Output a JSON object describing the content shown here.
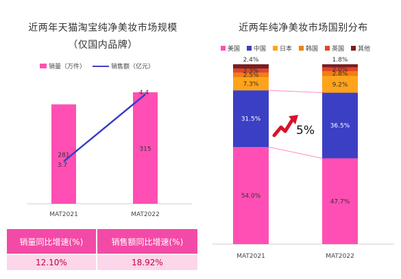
{
  "left": {
    "title_line1": "近两年天猫淘宝纯净美妆市场规模",
    "title_line2": "（仅国内品牌）",
    "legend": {
      "bar": "销量（万件）",
      "line": "销售额（亿元）"
    },
    "table": {
      "headers": [
        "销量同比增速(%)",
        "销售额同比增速(%)"
      ],
      "values": [
        "12.10%",
        "18.92%"
      ]
    }
  },
  "right": {
    "title": "近两年纯净美妆市场国别分布",
    "annotation": "5%"
  },
  "colors": {
    "bar": "#ff4fb4",
    "line": "#3b3fc4"
  },
  "chart_data": [
    {
      "type": "bar",
      "title": "近两年天猫淘宝纯净美妆市场规模（仅国内品牌）",
      "categories": [
        "MAT2021",
        "MAT2022"
      ],
      "series": [
        {
          "name": "销量（万件）",
          "type": "bar",
          "values": [
            281,
            315
          ],
          "labels": [
            "281",
            "315"
          ]
        },
        {
          "name": "销售额（亿元）",
          "type": "line",
          "values": [
            3.7,
            4.4
          ],
          "labels": [
            "3.7",
            "4.4"
          ]
        }
      ]
    },
    {
      "type": "bar",
      "stacked": true,
      "title": "近两年纯净美妆市场国别分布",
      "categories": [
        "MAT2021",
        "MAT2022"
      ],
      "series": [
        {
          "name": "美国",
          "color": "#ff4fb4",
          "values": [
            54.0,
            47.7
          ],
          "labels": [
            "54.0%",
            "47.7%"
          ]
        },
        {
          "name": "中国",
          "color": "#3b3fc4",
          "values": [
            31.5,
            36.5
          ],
          "labels": [
            "31.5%",
            "36.5%"
          ]
        },
        {
          "name": "日本",
          "color": "#ffa31a",
          "values": [
            7.3,
            9.2
          ],
          "labels": [
            "7.3%",
            "9.2%"
          ]
        },
        {
          "name": "韩国",
          "color": "#f07f12",
          "values": [
            2.5,
            2.8
          ],
          "labels": [
            "2.5%",
            "2.8%"
          ]
        },
        {
          "name": "英国",
          "color": "#e0452a",
          "values": [
            2.3,
            2.0
          ],
          "labels": [
            "2.3%",
            "2.0%"
          ]
        },
        {
          "name": "其他",
          "color": "#7a1f1f",
          "values": [
            2.4,
            1.8
          ],
          "labels": [
            "2.4%",
            "1.8%"
          ]
        }
      ]
    }
  ]
}
